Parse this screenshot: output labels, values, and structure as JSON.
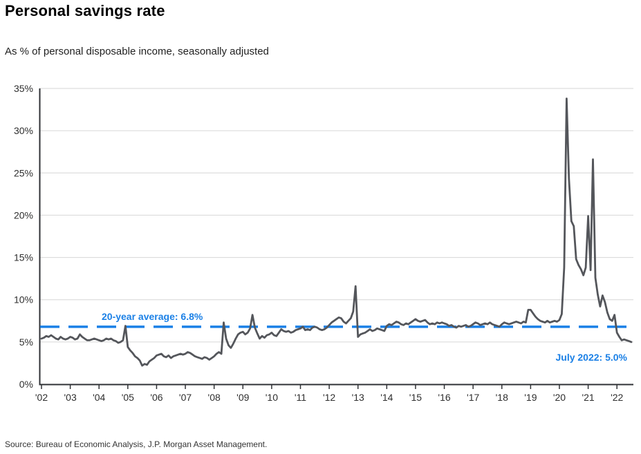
{
  "page": {
    "title": "Personal savings rate",
    "subtitle": "As % of personal disposable income, seasonally adjusted",
    "source": "Source: Bureau of Economic Analysis, J.P. Morgan Asset Management."
  },
  "colors": {
    "series_line": "#54565B",
    "average_line": "#1B80E6",
    "annotation_text": "#1B80E6",
    "grid": "#D6D6D6",
    "axis": "#2F3135",
    "tick_label": "#2E2E2E"
  },
  "chart_data": {
    "type": "line",
    "title": "Personal savings rate",
    "xlabel": "",
    "ylabel": "",
    "grid": "horizontal",
    "ylim": [
      0,
      35
    ],
    "y_ticks": [
      0,
      5,
      10,
      15,
      20,
      25,
      30,
      35
    ],
    "y_tick_suffix": "%",
    "x_range": [
      2002.0,
      2022.5
    ],
    "x_ticks": [
      {
        "year": 2002,
        "label": "'02"
      },
      {
        "year": 2003,
        "label": "'03"
      },
      {
        "year": 2004,
        "label": "'04"
      },
      {
        "year": 2005,
        "label": "'05"
      },
      {
        "year": 2006,
        "label": "'06"
      },
      {
        "year": 2007,
        "label": "'07"
      },
      {
        "year": 2008,
        "label": "'08"
      },
      {
        "year": 2009,
        "label": "'09"
      },
      {
        "year": 2010,
        "label": "'10"
      },
      {
        "year": 2011,
        "label": "'11"
      },
      {
        "year": 2012,
        "label": "'12"
      },
      {
        "year": 2013,
        "label": "'13"
      },
      {
        "year": 2014,
        "label": "'14"
      },
      {
        "year": 2015,
        "label": "'15"
      },
      {
        "year": 2016,
        "label": "'16"
      },
      {
        "year": 2017,
        "label": "'17"
      },
      {
        "year": 2018,
        "label": "'18"
      },
      {
        "year": 2019,
        "label": "'19"
      },
      {
        "year": 2020,
        "label": "'20"
      },
      {
        "year": 2021,
        "label": "'21"
      },
      {
        "year": 2022,
        "label": "'22"
      }
    ],
    "average_line": {
      "value": 6.8,
      "label": "20-year average: 6.8%",
      "style": "dashed"
    },
    "latest_point": {
      "date": "July 2022",
      "value": 5.0,
      "label": "July 2022: 5.0%"
    },
    "series": [
      {
        "name": "Personal savings rate",
        "frequency": "monthly",
        "start_year": 2002,
        "start_month": 1,
        "end_year": 2022,
        "end_month": 7,
        "values": [
          5.4,
          5.5,
          5.7,
          5.6,
          5.8,
          5.6,
          5.4,
          5.3,
          5.6,
          5.4,
          5.3,
          5.4,
          5.6,
          5.5,
          5.3,
          5.4,
          5.9,
          5.6,
          5.4,
          5.2,
          5.2,
          5.3,
          5.4,
          5.3,
          5.2,
          5.1,
          5.2,
          5.4,
          5.3,
          5.4,
          5.2,
          5.1,
          4.9,
          5.0,
          5.2,
          6.9,
          4.4,
          4.0,
          3.7,
          3.3,
          3.1,
          2.8,
          2.2,
          2.4,
          2.3,
          2.7,
          2.9,
          3.1,
          3.4,
          3.5,
          3.6,
          3.3,
          3.2,
          3.4,
          3.1,
          3.3,
          3.4,
          3.5,
          3.6,
          3.5,
          3.6,
          3.8,
          3.7,
          3.5,
          3.3,
          3.2,
          3.1,
          3.0,
          3.2,
          3.1,
          2.9,
          3.1,
          3.3,
          3.6,
          3.8,
          3.6,
          7.3,
          5.4,
          4.6,
          4.3,
          4.8,
          5.4,
          5.9,
          6.1,
          6.2,
          5.9,
          6.1,
          6.6,
          8.2,
          6.7,
          6.0,
          5.4,
          5.7,
          5.5,
          5.8,
          5.9,
          6.1,
          5.8,
          5.7,
          6.1,
          6.5,
          6.3,
          6.2,
          6.3,
          6.1,
          6.2,
          6.4,
          6.5,
          6.6,
          6.8,
          6.4,
          6.5,
          6.4,
          6.7,
          6.8,
          6.7,
          6.5,
          6.4,
          6.5,
          6.7,
          7.0,
          7.3,
          7.5,
          7.7,
          7.9,
          7.8,
          7.4,
          7.2,
          7.5,
          7.8,
          8.6,
          11.6,
          5.6,
          5.9,
          6.0,
          6.1,
          6.3,
          6.5,
          6.3,
          6.4,
          6.6,
          6.5,
          6.4,
          6.3,
          6.9,
          7.1,
          7.0,
          7.2,
          7.4,
          7.3,
          7.1,
          7.0,
          7.2,
          7.1,
          7.3,
          7.5,
          7.7,
          7.5,
          7.4,
          7.5,
          7.6,
          7.3,
          7.1,
          7.2,
          7.1,
          7.3,
          7.2,
          7.3,
          7.2,
          7.1,
          6.9,
          7.0,
          6.8,
          6.7,
          6.9,
          6.8,
          6.9,
          7.0,
          6.8,
          6.9,
          7.1,
          7.3,
          7.2,
          7.0,
          7.1,
          7.2,
          7.1,
          7.3,
          7.1,
          7.0,
          6.9,
          6.8,
          7.1,
          7.3,
          7.2,
          7.1,
          7.2,
          7.3,
          7.4,
          7.3,
          7.2,
          7.4,
          7.3,
          8.8,
          8.8,
          8.4,
          8.0,
          7.7,
          7.5,
          7.4,
          7.3,
          7.5,
          7.3,
          7.4,
          7.5,
          7.4,
          7.6,
          8.3,
          13.8,
          33.8,
          24.3,
          19.3,
          18.7,
          14.8,
          14.1,
          13.6,
          12.9,
          13.8,
          19.9,
          13.5,
          26.6,
          12.6,
          10.6,
          9.2,
          10.5,
          9.7,
          8.5,
          7.7,
          7.5,
          8.2,
          6.1,
          5.6,
          5.2,
          5.3,
          5.2,
          5.1,
          5.0
        ]
      }
    ]
  }
}
